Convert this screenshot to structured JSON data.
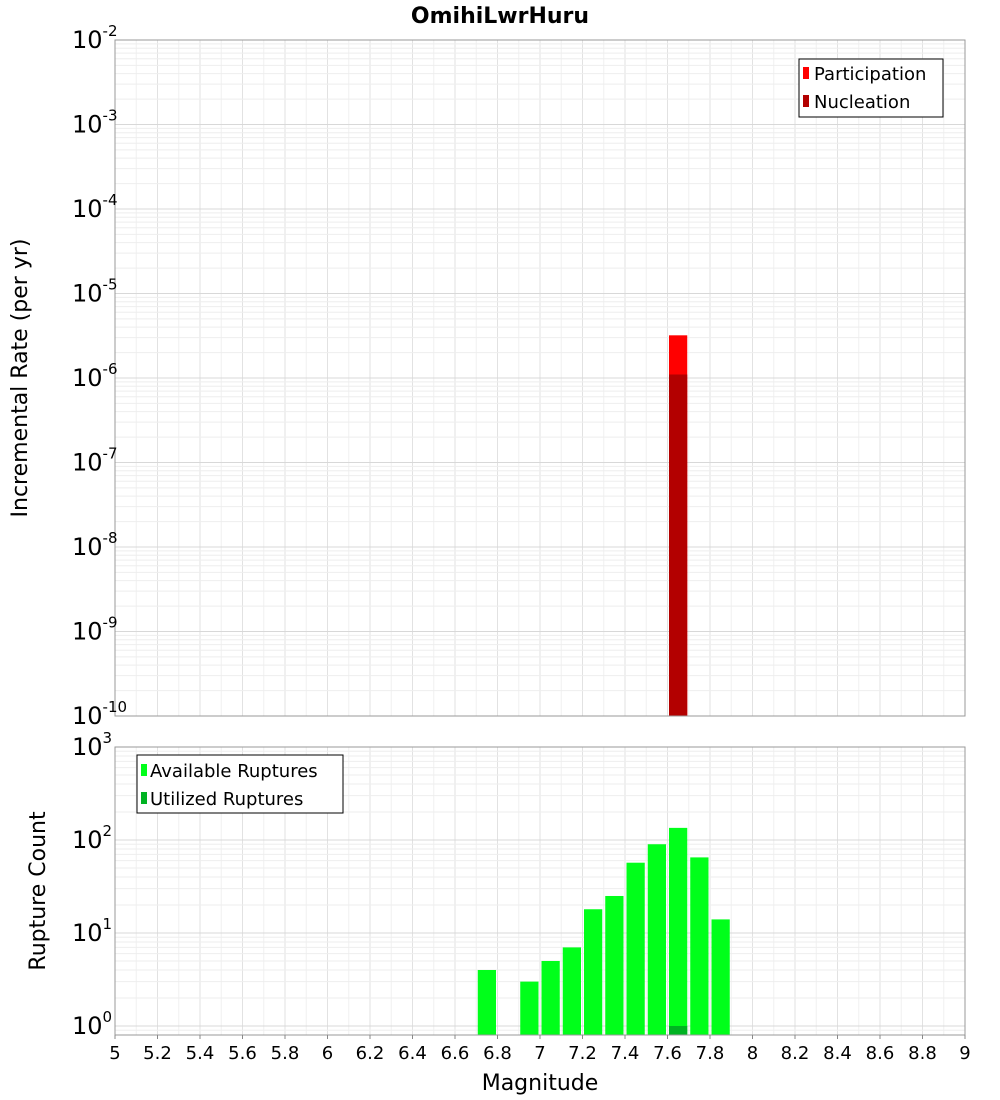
{
  "chart_data": {
    "type": "bar",
    "title": "OmihiLwrHuru",
    "xlabel": "Magnitude",
    "x_ticks": [
      "5",
      "5.2",
      "5.4",
      "5.6",
      "5.8",
      "6",
      "6.2",
      "6.4",
      "6.6",
      "6.8",
      "7",
      "7.2",
      "7.4",
      "7.6",
      "7.8",
      "8",
      "8.2",
      "8.4",
      "8.6",
      "8.8",
      "9"
    ],
    "xlim": [
      5,
      9
    ],
    "bin_width": 0.1,
    "grid": true,
    "panels": [
      {
        "ylabel": "Incremental Rate (per yr)",
        "y_scale": "log",
        "ylim": [
          1e-10,
          0.01
        ],
        "y_ticks": [
          {
            "base": "10",
            "exp": "-2"
          },
          {
            "base": "10",
            "exp": "-3"
          },
          {
            "base": "10",
            "exp": "-4"
          },
          {
            "base": "10",
            "exp": "-5"
          },
          {
            "base": "10",
            "exp": "-6"
          },
          {
            "base": "10",
            "exp": "-7"
          },
          {
            "base": "10",
            "exp": "-8"
          },
          {
            "base": "10",
            "exp": "-9"
          },
          {
            "base": "10",
            "exp": "-10"
          }
        ],
        "legend_position": "top-right",
        "series": [
          {
            "name": "Participation",
            "color": "#ff0000",
            "x": [
              7.65
            ],
            "values": [
              3.2e-06
            ]
          },
          {
            "name": "Nucleation",
            "color": "#b30000",
            "x": [
              7.65
            ],
            "values": [
              1.1e-06
            ]
          }
        ]
      },
      {
        "ylabel": "Rupture Count",
        "y_scale": "log",
        "ylim": [
          0.8,
          1000
        ],
        "y_ticks": [
          {
            "base": "10",
            "exp": "3"
          },
          {
            "base": "10",
            "exp": "2"
          },
          {
            "base": "10",
            "exp": "1"
          },
          {
            "base": "10",
            "exp": "0"
          }
        ],
        "legend_position": "top-left",
        "series": [
          {
            "name": "Available Ruptures",
            "color": "#00ff1a",
            "x": [
              6.75,
              6.95,
              7.05,
              7.15,
              7.25,
              7.35,
              7.45,
              7.55,
              7.65,
              7.75,
              7.85
            ],
            "values": [
              4,
              3,
              5,
              7,
              18,
              25,
              57,
              90,
              135,
              65,
              14
            ]
          },
          {
            "name": "Utilized Ruptures",
            "color": "#00b322",
            "x": [
              7.65
            ],
            "values": [
              1
            ]
          }
        ]
      }
    ]
  }
}
